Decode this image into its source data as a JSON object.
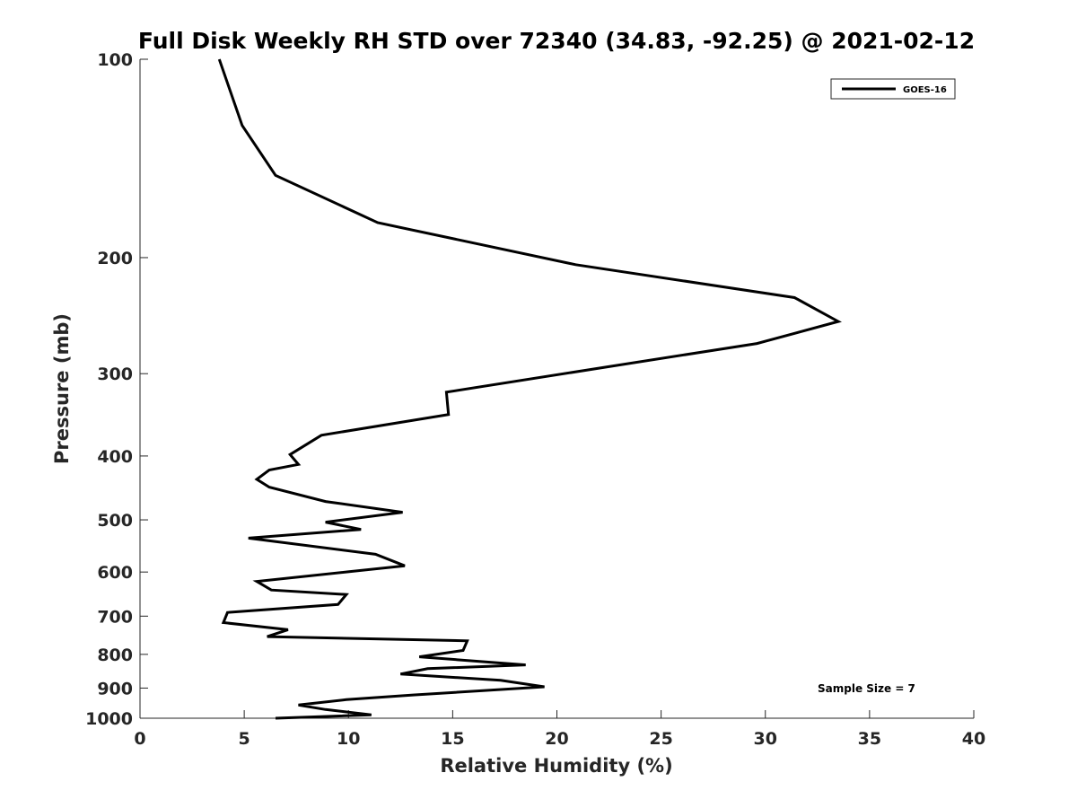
{
  "chart_data": {
    "type": "line",
    "title": "Full Disk Weekly RH STD over 72340 (34.83, -92.25) @ 2021-02-12",
    "xlabel": "Relative Humidity (%)",
    "ylabel": "Pressure (mb)",
    "xlim": [
      0,
      40
    ],
    "ylim": [
      100,
      1000
    ],
    "y_scale": "log",
    "y_reversed": true,
    "grid": false,
    "legend_position": "top-right",
    "x_ticks": [
      0,
      5,
      10,
      15,
      20,
      25,
      30,
      35,
      40
    ],
    "y_ticks": [
      100,
      200,
      300,
      400,
      500,
      600,
      700,
      800,
      900,
      1000
    ],
    "annotation": "Sample Size = 7",
    "series": [
      {
        "name": "GOES-16",
        "color": "#000000",
        "points": [
          [
            3.8,
            100
          ],
          [
            4.9,
            126
          ],
          [
            6.5,
            150
          ],
          [
            11.4,
            177
          ],
          [
            20.9,
            205
          ],
          [
            31.4,
            230
          ],
          [
            33.5,
            250
          ],
          [
            29.6,
            270
          ],
          [
            22.7,
            292
          ],
          [
            14.7,
            320
          ],
          [
            14.8,
            346
          ],
          [
            8.7,
            372
          ],
          [
            7.2,
            398
          ],
          [
            7.6,
            412
          ],
          [
            6.2,
            420
          ],
          [
            5.6,
            434
          ],
          [
            6.2,
            446
          ],
          [
            8.9,
            469
          ],
          [
            12.6,
            487
          ],
          [
            8.9,
            504
          ],
          [
            10.6,
            517
          ],
          [
            5.2,
            533
          ],
          [
            11.3,
            564
          ],
          [
            12.7,
            587
          ],
          [
            5.6,
            620
          ],
          [
            6.3,
            639
          ],
          [
            9.9,
            649
          ],
          [
            9.5,
            672
          ],
          [
            4.2,
            691
          ],
          [
            4.0,
            716
          ],
          [
            7.1,
            734
          ],
          [
            6.1,
            752
          ],
          [
            15.7,
            763
          ],
          [
            15.5,
            789
          ],
          [
            13.4,
            807
          ],
          [
            18.5,
            830
          ],
          [
            13.8,
            841
          ],
          [
            12.5,
            857
          ],
          [
            17.3,
            876
          ],
          [
            19.4,
            896
          ],
          [
            13.1,
            922
          ],
          [
            9.9,
            937
          ],
          [
            7.6,
            955
          ],
          [
            8.9,
            970
          ],
          [
            11.1,
            988
          ],
          [
            6.5,
            1000
          ]
        ]
      }
    ]
  }
}
